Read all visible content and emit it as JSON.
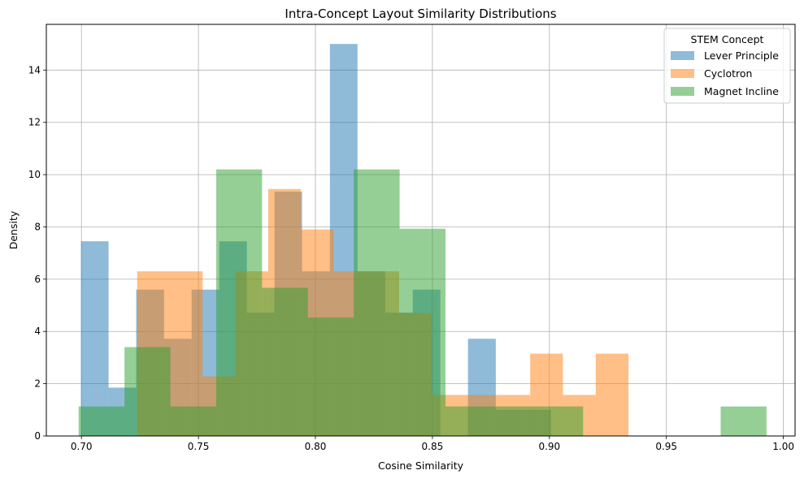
{
  "chart_data": {
    "type": "histogram",
    "title": "Intra-Concept Layout Similarity Distributions",
    "xlabel": "Cosine Similarity",
    "ylabel": "Density",
    "xlim": [
      0.685,
      1.005
    ],
    "ylim": [
      0,
      15.75
    ],
    "xticks": [
      0.7,
      0.75,
      0.8,
      0.85,
      0.9,
      0.95,
      1.0
    ],
    "xtick_labels": [
      "0.70",
      "0.75",
      "0.80",
      "0.85",
      "0.90",
      "0.95",
      "1.00"
    ],
    "yticks": [
      0,
      2,
      4,
      6,
      8,
      10,
      12,
      14
    ],
    "ytick_labels": [
      "0",
      "2",
      "4",
      "6",
      "8",
      "10",
      "12",
      "14"
    ],
    "grid": true,
    "legend": {
      "title": "STEM Concept",
      "placement": "top-right"
    },
    "series": [
      {
        "name": "Lever Principle",
        "color": "#1f77b4",
        "alpha": 0.5,
        "edges": [
          0.6998,
          0.7116,
          0.7234,
          0.7353,
          0.7471,
          0.7589,
          0.7707,
          0.7825,
          0.7943,
          0.8062,
          0.818,
          0.8298,
          0.8416,
          0.8534,
          0.8652,
          0.8771,
          0.8889,
          0.9007
        ],
        "values": [
          7.45,
          1.85,
          5.6,
          3.72,
          5.6,
          7.45,
          4.72,
          9.35,
          6.3,
          15.0,
          6.3,
          4.72,
          5.6,
          0.0,
          3.72,
          1.0,
          1.0
        ]
      },
      {
        "name": "Cyclotron",
        "color": "#ff7f0e",
        "alpha": 0.5,
        "edges": [
          0.7238,
          0.7378,
          0.7518,
          0.7658,
          0.7798,
          0.7938,
          0.8078,
          0.8218,
          0.8358,
          0.8498,
          0.8638,
          0.8778,
          0.8918,
          0.9058,
          0.9198,
          0.9338
        ],
        "values": [
          6.3,
          6.3,
          2.28,
          6.3,
          9.45,
          7.9,
          6.3,
          6.3,
          4.7,
          1.57,
          1.57,
          1.57,
          3.15,
          1.57,
          3.15
        ]
      },
      {
        "name": "Magnet Incline",
        "color": "#2ca02c",
        "alpha": 0.5,
        "edges": [
          0.6988,
          0.7184,
          0.738,
          0.7576,
          0.7772,
          0.7968,
          0.8164,
          0.836,
          0.8556,
          0.8752,
          0.8948,
          0.9144,
          0.934,
          0.9536,
          0.9732,
          0.9928
        ],
        "values": [
          1.13,
          3.4,
          1.13,
          10.2,
          5.67,
          4.53,
          10.2,
          7.93,
          1.13,
          1.13,
          1.13,
          0.0,
          0.0,
          0.0,
          1.13
        ]
      }
    ]
  }
}
